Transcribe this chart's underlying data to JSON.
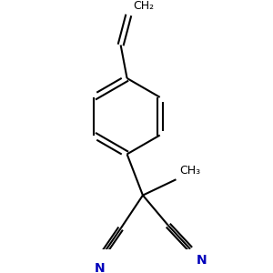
{
  "background": "#ffffff",
  "bond_color": "#000000",
  "n_color": "#0000bb",
  "text_color": "#000000",
  "line_width": 1.5,
  "figsize": [
    3.0,
    3.0
  ],
  "dpi": 100,
  "ch3_label": "CH₃",
  "ch2_label": "CH₂",
  "n_label": "N"
}
